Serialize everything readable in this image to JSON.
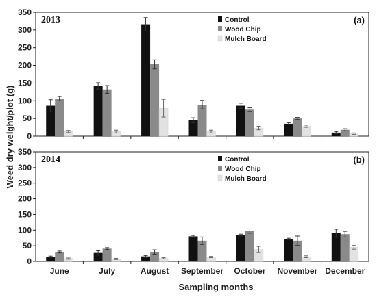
{
  "chart_data": [
    {
      "type": "bar",
      "year_label": "2013",
      "panel_label": "(a)",
      "categories": [
        "June",
        "July",
        "August",
        "September",
        "October",
        "November",
        "December"
      ],
      "series": [
        {
          "name": "Control",
          "color": "#111111",
          "values": [
            86,
            142,
            316,
            45,
            86,
            35,
            10
          ],
          "errors": [
            17,
            9,
            19,
            7,
            7,
            3,
            3
          ]
        },
        {
          "name": "Wood Chip",
          "color": "#8a8a8a",
          "values": [
            106,
            132,
            203,
            89,
            75,
            50,
            18
          ],
          "errors": [
            6,
            11,
            13,
            12,
            5,
            3,
            3
          ]
        },
        {
          "name": "Mulch Board",
          "color": "#e2e2e2",
          "values": [
            13,
            13,
            79,
            13,
            23,
            28,
            7
          ],
          "errors": [
            3,
            4,
            25,
            4,
            5,
            3,
            2
          ]
        }
      ],
      "ylabel": "Weed dry weight/plot (g)",
      "xlabel": "",
      "ylim": [
        0,
        350
      ],
      "yticks": [
        0,
        50,
        100,
        150,
        200,
        250,
        300,
        350
      ],
      "legend_position": "top-center",
      "grid": false
    },
    {
      "type": "bar",
      "year_label": "2014",
      "panel_label": "(b)",
      "categories": [
        "June",
        "July",
        "August",
        "September",
        "October",
        "November",
        "December"
      ],
      "series": [
        {
          "name": "Control",
          "color": "#111111",
          "values": [
            15,
            27,
            16,
            80,
            84,
            72,
            90
          ],
          "errors": [
            2,
            7,
            3,
            3,
            3,
            2,
            13
          ]
        },
        {
          "name": "Wood Chip",
          "color": "#8a8a8a",
          "values": [
            30,
            41,
            30,
            66,
            97,
            66,
            87
          ],
          "errors": [
            3,
            3,
            7,
            12,
            7,
            15,
            9
          ]
        },
        {
          "name": "Mulch Board",
          "color": "#e2e2e2",
          "values": [
            9,
            8,
            10,
            14,
            38,
            15,
            45
          ],
          "errors": [
            2,
            2,
            2,
            2,
            10,
            3,
            6
          ]
        }
      ],
      "ylabel": "Weed dry weight/plot (g)",
      "xlabel": "Sampling months",
      "ylim": [
        0,
        350
      ],
      "yticks": [
        0,
        50,
        100,
        150,
        200,
        250,
        300,
        350
      ],
      "legend_position": "top-center",
      "grid": false
    }
  ]
}
